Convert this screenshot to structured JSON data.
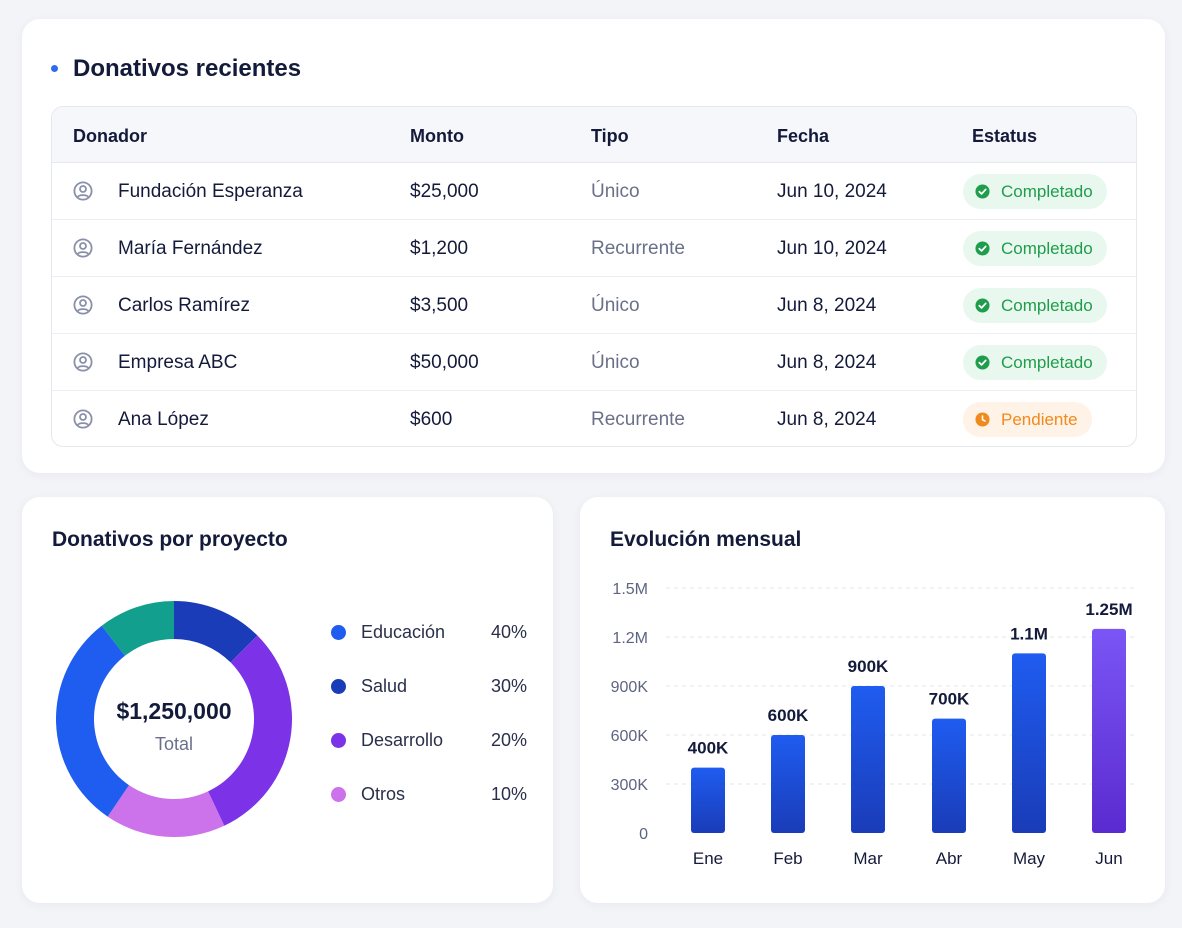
{
  "recent": {
    "title": "Donativos recientes",
    "columns": [
      "Donador",
      "Monto",
      "Tipo",
      "Fecha",
      "Estatus"
    ],
    "rows": [
      {
        "donor": "Fundación Esperanza",
        "amount": "$25,000",
        "type": "Único",
        "date": "Jun 10, 2024",
        "status": "Completado",
        "status_kind": "completed"
      },
      {
        "donor": "María Fernández",
        "amount": "$1,200",
        "type": "Recurrente",
        "date": "Jun 10, 2024",
        "status": "Completado",
        "status_kind": "completed"
      },
      {
        "donor": "Carlos Ramírez",
        "amount": "$3,500",
        "type": "Único",
        "date": "Jun 8, 2024",
        "status": "Completado",
        "status_kind": "completed"
      },
      {
        "donor": "Empresa ABC",
        "amount": "$50,000",
        "type": "Único",
        "date": "Jun 8, 2024",
        "status": "Completado",
        "status_kind": "completed"
      },
      {
        "donor": "Ana López",
        "amount": "$600",
        "type": "Recurrente",
        "date": "Jun 8, 2024",
        "status": "Pendiente",
        "status_kind": "pending"
      }
    ],
    "icons": {
      "donor": "user-circle-icon",
      "completed": "check-circle-icon",
      "pending": "clock-icon"
    }
  },
  "projects": {
    "title": "Donativos por proyecto",
    "total_amount": "$1,250,000",
    "total_label": "Total",
    "legend": [
      {
        "name": "Educación",
        "pct": "40%",
        "color": "#1f5cf0"
      },
      {
        "name": "Salud",
        "pct": "30%",
        "color": "#1a3cb8"
      },
      {
        "name": "Desarrollo",
        "pct": "20%",
        "color": "#7c33e8"
      },
      {
        "name": "Otros",
        "pct": "10%",
        "color": "#cc72ea"
      }
    ]
  },
  "monthly": {
    "title": "Evolución mensual"
  },
  "colors": {
    "completed_bg": "#e9f8ee",
    "completed_fg": "#1f9d4c",
    "pending_bg": "#fff2e6",
    "pending_fg": "#f08a1c",
    "accent": "#2f6bf2"
  },
  "chart_data": [
    {
      "type": "pie",
      "title": "Donativos por proyecto",
      "categories": [
        "Educación",
        "Salud",
        "Desarrollo",
        "Otros"
      ],
      "values": [
        40,
        30,
        20,
        10
      ],
      "legend": "right",
      "center_text": [
        "$1,250,000",
        "Total"
      ],
      "slice_colors": [
        "#1f5cf0",
        "#1a3cb8",
        "#7c33e8",
        "#cc72ea",
        "#129f8d"
      ],
      "note": "donut"
    },
    {
      "type": "bar",
      "title": "Evolución mensual",
      "categories": [
        "Ene",
        "Feb",
        "Mar",
        "Abr",
        "May",
        "Jun"
      ],
      "values": [
        400000,
        600000,
        900000,
        700000,
        1100000,
        1250000
      ],
      "data_labels": [
        "400K",
        "600K",
        "900K",
        "700K",
        "1.1M",
        "1.25M"
      ],
      "yticks": [
        "0",
        "300K",
        "600K",
        "900K",
        "1.2M",
        "1.5M"
      ],
      "ylim": [
        0,
        1500000
      ],
      "grid": true,
      "colors": {
        "bar_top": "#1f5cf0",
        "bar_bottom": "#1a3cb8",
        "last_top": "#7b55f5",
        "last_bottom": "#5a2bd0"
      }
    }
  ]
}
